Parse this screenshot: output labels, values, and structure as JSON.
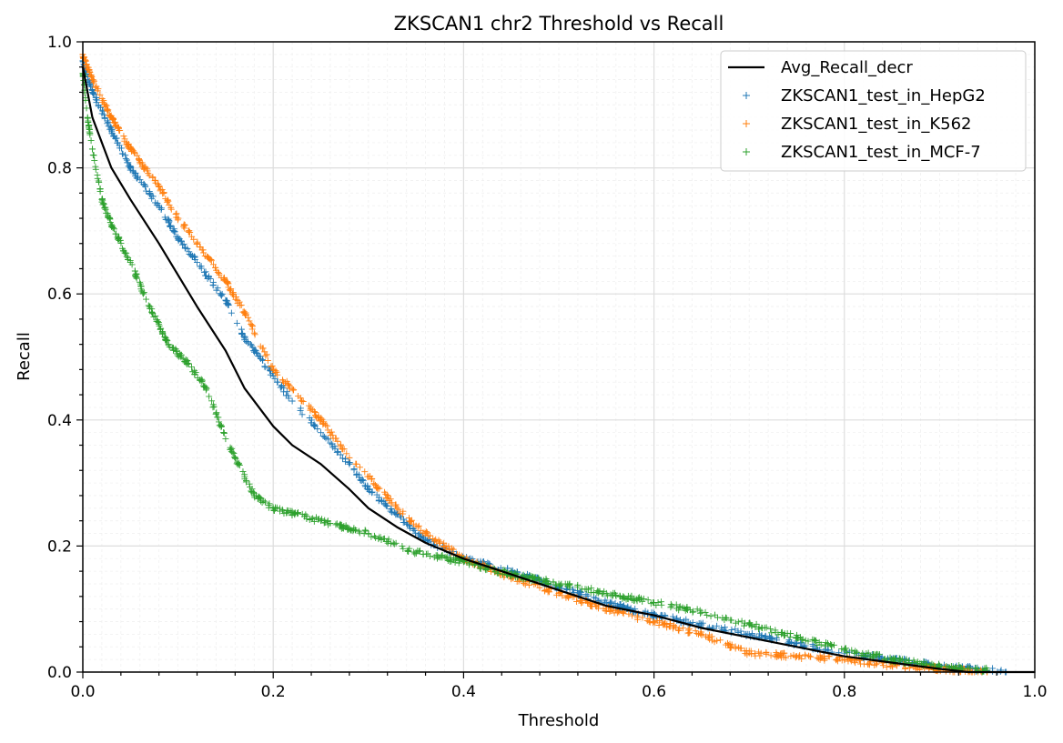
{
  "chart_data": {
    "type": "line",
    "title": "ZKSCAN1 chr2 Threshold vs Recall",
    "xlabel": "Threshold",
    "ylabel": "Recall",
    "xlim": [
      0.0,
      1.0
    ],
    "ylim": [
      0.0,
      1.0
    ],
    "xticks": [
      "0.0",
      "0.2",
      "0.4",
      "0.6",
      "0.8",
      "1.0"
    ],
    "yticks": [
      "0.0",
      "0.2",
      "0.4",
      "0.6",
      "0.8",
      "1.0"
    ],
    "grid": true,
    "legend_position": "top-right",
    "series": [
      {
        "name": "Avg_Recall_decr",
        "kind": "line",
        "color": "#000000",
        "x": [
          0.0,
          0.01,
          0.03,
          0.05,
          0.08,
          0.1,
          0.12,
          0.15,
          0.17,
          0.2,
          0.22,
          0.25,
          0.28,
          0.3,
          0.33,
          0.36,
          0.4,
          0.45,
          0.5,
          0.55,
          0.6,
          0.65,
          0.7,
          0.75,
          0.8,
          0.85,
          0.9,
          0.93,
          1.0
        ],
        "y": [
          0.96,
          0.88,
          0.8,
          0.75,
          0.68,
          0.63,
          0.58,
          0.51,
          0.45,
          0.39,
          0.36,
          0.33,
          0.29,
          0.26,
          0.23,
          0.205,
          0.18,
          0.155,
          0.13,
          0.105,
          0.09,
          0.07,
          0.055,
          0.04,
          0.025,
          0.015,
          0.005,
          0.0,
          0.0
        ]
      },
      {
        "name": "ZKSCAN1_test_in_HepG2",
        "kind": "scatter",
        "color": "#1f77b4",
        "x": [
          0.0,
          0.01,
          0.03,
          0.05,
          0.08,
          0.1,
          0.12,
          0.15,
          0.17,
          0.2,
          0.22,
          0.25,
          0.28,
          0.3,
          0.33,
          0.36,
          0.4,
          0.45,
          0.5,
          0.55,
          0.6,
          0.65,
          0.7,
          0.75,
          0.8,
          0.85,
          0.9,
          0.95,
          0.97
        ],
        "y": [
          0.97,
          0.92,
          0.86,
          0.8,
          0.74,
          0.69,
          0.65,
          0.59,
          0.53,
          0.47,
          0.43,
          0.38,
          0.33,
          0.29,
          0.25,
          0.21,
          0.18,
          0.16,
          0.135,
          0.11,
          0.09,
          0.075,
          0.06,
          0.045,
          0.03,
          0.02,
          0.01,
          0.003,
          0.0
        ]
      },
      {
        "name": "ZKSCAN1_test_in_K562",
        "kind": "scatter",
        "color": "#ff7f0e",
        "x": [
          0.0,
          0.01,
          0.03,
          0.05,
          0.08,
          0.1,
          0.12,
          0.15,
          0.17,
          0.2,
          0.22,
          0.25,
          0.28,
          0.3,
          0.33,
          0.36,
          0.4,
          0.45,
          0.5,
          0.55,
          0.6,
          0.65,
          0.7,
          0.75,
          0.8,
          0.85,
          0.9,
          0.95
        ],
        "y": [
          0.98,
          0.94,
          0.88,
          0.83,
          0.77,
          0.72,
          0.68,
          0.62,
          0.57,
          0.48,
          0.45,
          0.4,
          0.34,
          0.31,
          0.26,
          0.22,
          0.18,
          0.15,
          0.125,
          0.1,
          0.08,
          0.06,
          0.03,
          0.025,
          0.02,
          0.01,
          0.005,
          0.0
        ]
      },
      {
        "name": "ZKSCAN1_test_in_MCF-7",
        "kind": "scatter",
        "color": "#2ca02c",
        "x": [
          0.0,
          0.005,
          0.01,
          0.02,
          0.03,
          0.05,
          0.07,
          0.09,
          0.11,
          0.13,
          0.14,
          0.15,
          0.16,
          0.17,
          0.18,
          0.2,
          0.25,
          0.3,
          0.35,
          0.4,
          0.45,
          0.5,
          0.55,
          0.6,
          0.65,
          0.7,
          0.75,
          0.8,
          0.85,
          0.9,
          0.95
        ],
        "y": [
          0.95,
          0.88,
          0.83,
          0.75,
          0.71,
          0.65,
          0.58,
          0.52,
          0.49,
          0.45,
          0.41,
          0.37,
          0.34,
          0.31,
          0.28,
          0.26,
          0.24,
          0.22,
          0.19,
          0.175,
          0.155,
          0.14,
          0.125,
          0.11,
          0.095,
          0.075,
          0.055,
          0.035,
          0.02,
          0.01,
          0.003
        ]
      }
    ]
  }
}
